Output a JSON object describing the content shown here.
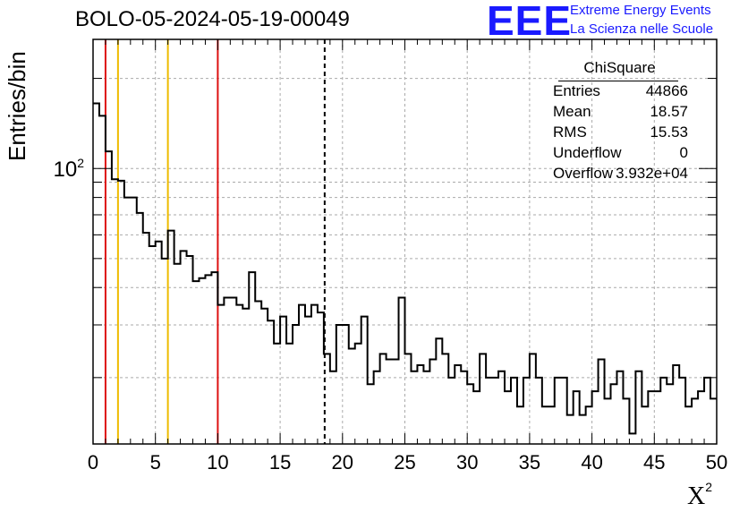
{
  "chart_data": {
    "type": "histogram",
    "title": "BOLO-05-2024-05-19-00049",
    "xlabel": "X",
    "xlabel_superscript": "2",
    "ylabel": "Entries/bin",
    "y_scale": "log",
    "xlim": [
      0,
      50
    ],
    "ylim": [
      12,
      270
    ],
    "x_ticks": [
      "0",
      "5",
      "10",
      "15",
      "20",
      "25",
      "30",
      "35",
      "40",
      "45",
      "50"
    ],
    "y_tick_label": "10",
    "y_tick_label_exponent": "2",
    "grid": true,
    "bin_width": 0.5,
    "bin_values": [
      165,
      150,
      114,
      92,
      91,
      80,
      80,
      71,
      61,
      55,
      57,
      50,
      62,
      48,
      53,
      51,
      42,
      43,
      44,
      45,
      35,
      37,
      37,
      35,
      34,
      45,
      36,
      34,
      31,
      26,
      32,
      26,
      30,
      35,
      32,
      35,
      33,
      24,
      21,
      30,
      30,
      25,
      26,
      32,
      19,
      21,
      24,
      23,
      23,
      37,
      24,
      21,
      22,
      21,
      23,
      27,
      24,
      20,
      22,
      21,
      19,
      18,
      24,
      20,
      20,
      21,
      18,
      20,
      16,
      20,
      24,
      20,
      16,
      16,
      20,
      20,
      15,
      18,
      15,
      16,
      18,
      23,
      17,
      19,
      21,
      17,
      13,
      21,
      16,
      18,
      18,
      20,
      19,
      22,
      20,
      16,
      17,
      18,
      20,
      17
    ],
    "vertical_lines": [
      {
        "x": 1,
        "color": "#dd1111",
        "style": "solid"
      },
      {
        "x": 2,
        "color": "#eebb00",
        "style": "solid"
      },
      {
        "x": 6,
        "color": "#eebb00",
        "style": "solid"
      },
      {
        "x": 10,
        "color": "#dd1111",
        "style": "solid"
      },
      {
        "x": 18.57,
        "color": "#000000",
        "style": "dashed"
      }
    ],
    "stats_box": {
      "title": "ChiSquare",
      "rows": [
        {
          "label": "Entries",
          "value": "44866"
        },
        {
          "label": "Mean",
          "value": "18.57"
        },
        {
          "label": "RMS",
          "value": "15.53"
        },
        {
          "label": "Underflow",
          "value": "0"
        },
        {
          "label": "Overflow",
          "value": "3.932e+04"
        }
      ]
    }
  },
  "logo": {
    "mark": "EEE",
    "line1": "Extreme Energy Events",
    "line2": "La Scienza nelle Scuole"
  }
}
